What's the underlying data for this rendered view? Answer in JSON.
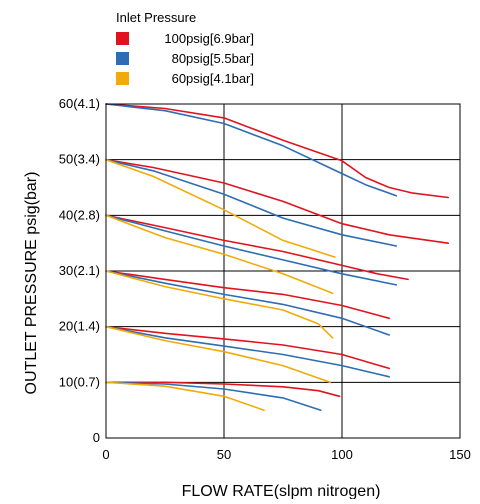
{
  "chart_data": {
    "type": "line",
    "title": "",
    "xlabel": "FLOW RATE(slpm nitrogen)",
    "ylabel": "OUTLET PRESSURE psig(bar)",
    "xlim": [
      0,
      150
    ],
    "ylim": [
      0,
      60
    ],
    "grid": true,
    "xticks": [
      0,
      50,
      100,
      150
    ],
    "xtick_labels": [
      "0",
      "50",
      "100",
      "150"
    ],
    "yticks": [
      0,
      10,
      20,
      30,
      40,
      50,
      60
    ],
    "ytick_labels": [
      "0",
      "10(0.7)",
      "20(1.4)",
      "30(2.1)",
      "40(2.8)",
      "50(3.4)",
      "60(4.1)"
    ],
    "legend": {
      "title": "Inlet Pressure",
      "position": "top-left",
      "entries": [
        {
          "label": "100psig[6.9bar]",
          "color": "#e0141e"
        },
        {
          "label": "80psig[5.5bar]",
          "color": "#2e6db4"
        },
        {
          "label": "60psig[4.1bar]",
          "color": "#f0ab0a"
        }
      ]
    },
    "series": [
      {
        "inlet": "100psig[6.9bar]",
        "setpoint": 60,
        "color": "#e0141e",
        "points": [
          [
            0,
            60
          ],
          [
            25,
            59.2
          ],
          [
            50,
            57.5
          ],
          [
            75,
            53.5
          ],
          [
            100,
            49.8
          ],
          [
            110,
            46.8
          ],
          [
            120,
            45
          ],
          [
            130,
            44
          ],
          [
            145,
            43.2
          ]
        ]
      },
      {
        "inlet": "80psig[5.5bar]",
        "setpoint": 60,
        "color": "#2e6db4",
        "points": [
          [
            0,
            60
          ],
          [
            25,
            58.8
          ],
          [
            50,
            56.5
          ],
          [
            75,
            52.5
          ],
          [
            100,
            47.5
          ],
          [
            110,
            45.5
          ],
          [
            123,
            43.5
          ]
        ]
      },
      {
        "inlet": "100psig[6.9bar]",
        "setpoint": 50,
        "color": "#e0141e",
        "points": [
          [
            0,
            50
          ],
          [
            20,
            48.6
          ],
          [
            50,
            45.8
          ],
          [
            75,
            42.5
          ],
          [
            100,
            38.5
          ],
          [
            120,
            36.5
          ],
          [
            145,
            35
          ]
        ]
      },
      {
        "inlet": "80psig[5.5bar]",
        "setpoint": 50,
        "color": "#2e6db4",
        "points": [
          [
            0,
            50
          ],
          [
            20,
            48
          ],
          [
            50,
            43.8
          ],
          [
            75,
            39.5
          ],
          [
            100,
            36.5
          ],
          [
            123,
            34.5
          ]
        ]
      },
      {
        "inlet": "60psig[4.1bar]",
        "setpoint": 50,
        "color": "#f0ab0a",
        "points": [
          [
            0,
            50
          ],
          [
            20,
            47
          ],
          [
            50,
            41
          ],
          [
            75,
            35.5
          ],
          [
            97,
            32.5
          ]
        ]
      },
      {
        "inlet": "100psig[6.9bar]",
        "setpoint": 40,
        "color": "#e0141e",
        "points": [
          [
            0,
            40
          ],
          [
            25,
            37.8
          ],
          [
            50,
            35.5
          ],
          [
            75,
            33.5
          ],
          [
            100,
            31
          ],
          [
            115,
            29.5
          ],
          [
            128,
            28.5
          ]
        ]
      },
      {
        "inlet": "80psig[5.5bar]",
        "setpoint": 40,
        "color": "#2e6db4",
        "points": [
          [
            0,
            40
          ],
          [
            25,
            37.2
          ],
          [
            50,
            34.5
          ],
          [
            75,
            32
          ],
          [
            100,
            29.5
          ],
          [
            123,
            27.5
          ]
        ]
      },
      {
        "inlet": "60psig[4.1bar]",
        "setpoint": 40,
        "color": "#f0ab0a",
        "points": [
          [
            0,
            40
          ],
          [
            25,
            36
          ],
          [
            50,
            33
          ],
          [
            75,
            29.5
          ],
          [
            96,
            26
          ]
        ]
      },
      {
        "inlet": "100psig[6.9bar]",
        "setpoint": 30,
        "color": "#e0141e",
        "points": [
          [
            0,
            30
          ],
          [
            25,
            28.5
          ],
          [
            50,
            27
          ],
          [
            75,
            25.8
          ],
          [
            100,
            23.8
          ],
          [
            120,
            21.5
          ]
        ]
      },
      {
        "inlet": "80psig[5.5bar]",
        "setpoint": 30,
        "color": "#2e6db4",
        "points": [
          [
            0,
            30
          ],
          [
            25,
            27.8
          ],
          [
            50,
            25.8
          ],
          [
            75,
            24
          ],
          [
            100,
            21.5
          ],
          [
            120,
            18.5
          ]
        ]
      },
      {
        "inlet": "60psig[4.1bar]",
        "setpoint": 30,
        "color": "#f0ab0a",
        "points": [
          [
            0,
            30
          ],
          [
            25,
            27.2
          ],
          [
            50,
            25
          ],
          [
            75,
            23
          ],
          [
            90,
            20.5
          ],
          [
            96,
            18
          ]
        ]
      },
      {
        "inlet": "100psig[6.9bar]",
        "setpoint": 20,
        "color": "#e0141e",
        "points": [
          [
            0,
            20
          ],
          [
            25,
            18.8
          ],
          [
            50,
            17.8
          ],
          [
            75,
            16.7
          ],
          [
            100,
            15
          ],
          [
            120,
            12.5
          ]
        ]
      },
      {
        "inlet": "80psig[5.5bar]",
        "setpoint": 20,
        "color": "#2e6db4",
        "points": [
          [
            0,
            20
          ],
          [
            25,
            18
          ],
          [
            50,
            16.5
          ],
          [
            75,
            15
          ],
          [
            100,
            13
          ],
          [
            120,
            11
          ]
        ]
      },
      {
        "inlet": "60psig[4.1bar]",
        "setpoint": 20,
        "color": "#f0ab0a",
        "points": [
          [
            0,
            20
          ],
          [
            25,
            17.5
          ],
          [
            50,
            15.5
          ],
          [
            75,
            13
          ],
          [
            95,
            10
          ]
        ]
      },
      {
        "inlet": "100psig[6.9bar]",
        "setpoint": 10,
        "color": "#e0141e",
        "points": [
          [
            0,
            10
          ],
          [
            25,
            10
          ],
          [
            50,
            9.7
          ],
          [
            75,
            9.2
          ],
          [
            90,
            8.5
          ],
          [
            99,
            7.5
          ]
        ]
      },
      {
        "inlet": "80psig[5.5bar]",
        "setpoint": 10,
        "color": "#2e6db4",
        "points": [
          [
            0,
            10
          ],
          [
            25,
            9.7
          ],
          [
            50,
            8.8
          ],
          [
            75,
            7.2
          ],
          [
            91,
            5
          ]
        ]
      },
      {
        "inlet": "60psig[4.1bar]",
        "setpoint": 10,
        "color": "#f0ab0a",
        "points": [
          [
            0,
            10
          ],
          [
            25,
            9.3
          ],
          [
            50,
            7.5
          ],
          [
            67,
            5
          ]
        ]
      }
    ]
  }
}
